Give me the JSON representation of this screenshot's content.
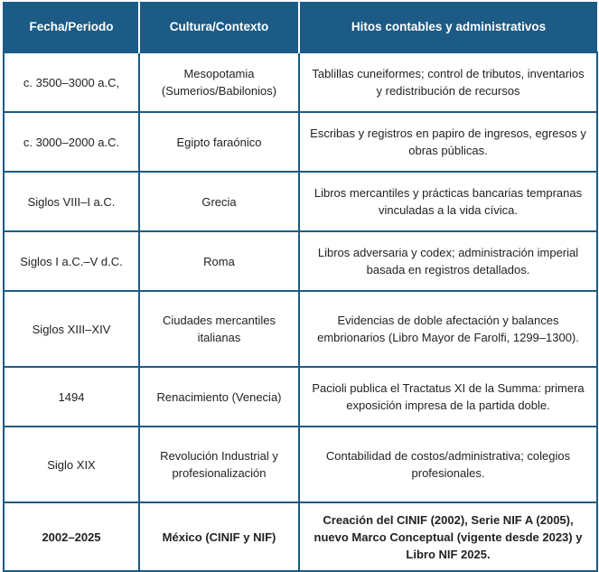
{
  "table": {
    "headers": [
      "Fecha/Periodo",
      "Cultura/Contexto",
      "Hitos contables y administrativos"
    ],
    "rows": [
      {
        "period": "c. 3500–3000 a.C,",
        "culture": "Mesopotamia (Sumerios/Babilonios)",
        "milestone": "Tablillas cuneiformes; control de tributos, inventarios y redistribución de recursos"
      },
      {
        "period": "c. 3000–2000 a.C.",
        "culture": "Egipto faraónico",
        "milestone": "Escribas y registros en papiro de ingresos, egresos y obras públicas."
      },
      {
        "period": "Siglos VIII–I a.C.",
        "culture": "Grecia",
        "milestone": "Libros mercantiles y prácticas bancarias tempranas vinculadas a la vida cívica."
      },
      {
        "period": "Siglos I a.C.–V d.C.",
        "culture": "Roma",
        "milestone": "Libros adversaria y codex; administración imperial basada en registros detallados."
      },
      {
        "period": "Siglos XIII–XIV",
        "culture": "Ciudades mercantiles italianas",
        "milestone": "Evidencias de doble afectación y balances embrionarios (Libro Mayor de Farolfi, 1299–1300)."
      },
      {
        "period": "1494",
        "culture": "Renacimiento (Venecia)",
        "milestone": "Pacioli publica el Tractatus XI de la Summa: primera exposición impresa de la partida doble."
      },
      {
        "period": "Siglo XIX",
        "culture": "Revolución Industrial y profesionalización",
        "milestone": "Contabilidad de costos/administrativa; colegios profesionales."
      },
      {
        "period": "2002–2025",
        "culture": "México (CINIF y NIF)",
        "milestone": "Creación del CINIF (2002), Serie NIF A (2005), nuevo Marco Conceptual (vigente desde 2023) y Libro NIF 2025."
      }
    ]
  }
}
